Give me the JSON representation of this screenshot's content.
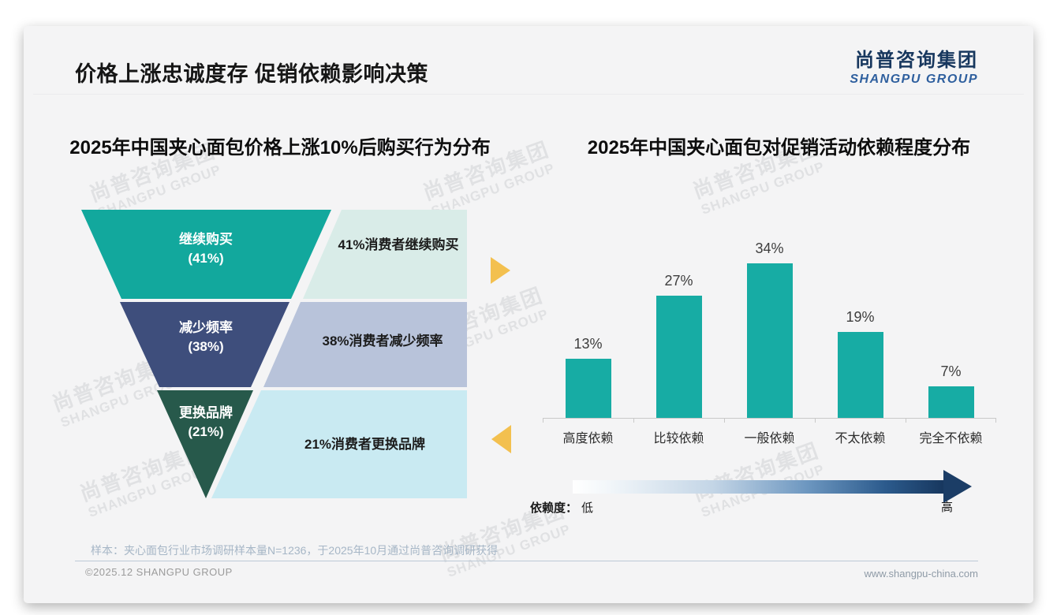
{
  "header": {
    "title": "价格上涨忠诚度存 促销依赖影响决策"
  },
  "logo": {
    "cn": "尚普咨询集团",
    "en": "SHANGPU GROUP"
  },
  "watermark": {
    "cn": "尚普咨询集团",
    "en": "SHANGPU GROUP"
  },
  "colors": {
    "funnel_teal": "#12a89d",
    "funnel_navy": "#3e4e7c",
    "funnel_green": "#27594b",
    "strip_mint": "#d9ece8",
    "strip_periwinkle": "#b8c3da",
    "strip_cyan": "#c9eaf2",
    "bar_teal": "#17aca4",
    "accent_yellow": "#f3c04f",
    "arrow_navy": "#17375e",
    "logo_navy": "#17375e",
    "logo_blue": "#2e5f9e"
  },
  "chart_data": [
    {
      "type": "funnel",
      "title": "2025年中国夹心面包价格上涨10%后购买行为分布",
      "categories": [
        "继续购买",
        "减少频率",
        "更换品牌"
      ],
      "values": [
        41,
        38,
        21
      ],
      "pct_labels": [
        "(41%)",
        "(38%)",
        "(21%)"
      ],
      "annotations": [
        "41%消费者继续购买",
        "38%消费者减少频率",
        "21%消费者更换品牌"
      ],
      "unit": "%"
    },
    {
      "type": "bar",
      "title": "2025年中国夹心面包对促销活动依赖程度分布",
      "categories": [
        "高度依赖",
        "比较依赖",
        "一般依赖",
        "不太依赖",
        "完全不依赖"
      ],
      "values": [
        13,
        27,
        34,
        19,
        7
      ],
      "data_labels": [
        "13%",
        "27%",
        "34%",
        "19%",
        "7%"
      ],
      "unit": "%",
      "ylim": [
        0,
        40
      ],
      "grid": false,
      "legend": "none",
      "dependence_axis": {
        "label": "依赖度：",
        "low": "低",
        "high": "高"
      }
    }
  ],
  "footnote": "样本：夹心面包行业市场调研样本量N=1236，于2025年10月通过尚普咨询调研获得",
  "footer": {
    "copyright": "©2025.12 SHANGPU GROUP",
    "website": "www.shangpu-china.com"
  }
}
